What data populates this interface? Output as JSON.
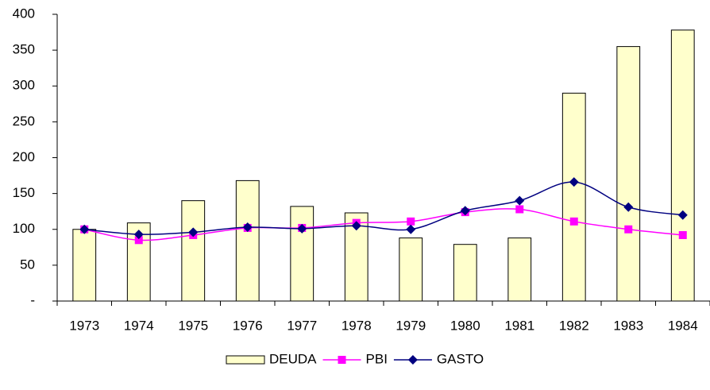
{
  "chart_data": {
    "type": "bar-line",
    "categories": [
      "1973",
      "1974",
      "1975",
      "1976",
      "1977",
      "1978",
      "1979",
      "1980",
      "1981",
      "1982",
      "1983",
      "1984"
    ],
    "series": [
      {
        "name": "DEUDA",
        "type": "bar",
        "color": "#ffffcc",
        "values": [
          100,
          109,
          140,
          168,
          132,
          123,
          88,
          79,
          88,
          290,
          355,
          378
        ]
      },
      {
        "name": "PBI",
        "type": "line",
        "marker": "square",
        "color": "#ff00ff",
        "values": [
          100,
          85,
          92,
          102,
          102,
          109,
          111,
          124,
          128,
          111,
          100,
          92
        ]
      },
      {
        "name": "GASTO",
        "type": "line",
        "marker": "diamond",
        "color": "#000080",
        "values": [
          100,
          93,
          96,
          103,
          101,
          105,
          100,
          126,
          140,
          166,
          131,
          120
        ]
      }
    ],
    "ylim": [
      0,
      400
    ],
    "yticks": [
      {
        "value": 0,
        "label": "-"
      },
      50,
      100,
      150,
      200,
      250,
      300,
      350,
      400
    ],
    "smooth": true,
    "legend": "bottom"
  }
}
